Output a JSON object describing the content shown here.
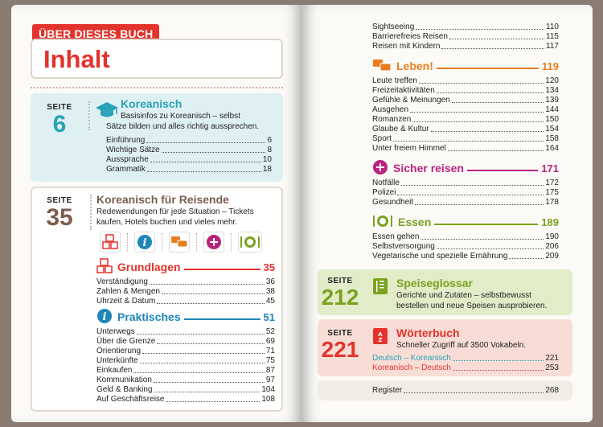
{
  "left": {
    "tag": "ÜBER DIESES BUCH",
    "title": "Inhalt",
    "block1": {
      "seite_label": "SEITE",
      "seite_num": "6",
      "heading": "Koreanisch",
      "desc1": "Basisinfos zu Koreanisch – selbst",
      "desc2": "Sätze bilden und alles richtig aussprechen.",
      "items": [
        {
          "label": "Einführung",
          "page": "6"
        },
        {
          "label": "Wichtige Sätze",
          "page": "8"
        },
        {
          "label": "Aussprache",
          "page": "10"
        },
        {
          "label": "Grammatik",
          "page": "18"
        }
      ]
    },
    "block2": {
      "seite_label": "SEITE",
      "seite_num": "35",
      "heading": "Koreanisch für Reisende",
      "desc1": "Redewendungen für jede Situation – Tickets",
      "desc2": "kaufen, Hotels buchen und vieles mehr.",
      "grundlagen": {
        "name": "Grundlagen",
        "page": "35",
        "items": [
          {
            "label": "Verständigung",
            "page": "36"
          },
          {
            "label": "Zahlen & Mengen",
            "page": "38"
          },
          {
            "label": "Uhrzeit & Datum",
            "page": "45"
          }
        ]
      },
      "praktisches": {
        "name": "Praktisches",
        "page": "51",
        "items": [
          {
            "label": "Unterwegs",
            "page": "52"
          },
          {
            "label": "Über die Grenze",
            "page": "69"
          },
          {
            "label": "Orientierung",
            "page": "71"
          },
          {
            "label": "Unterkünfte",
            "page": "75"
          },
          {
            "label": "Einkaufen",
            "page": "87"
          },
          {
            "label": "Kommunikation",
            "page": "97"
          },
          {
            "label": "Geld & Banking",
            "page": "104"
          },
          {
            "label": "Auf Geschäftsreise",
            "page": "108"
          }
        ]
      }
    }
  },
  "right": {
    "top_items": [
      {
        "label": "Sightseeing",
        "page": "110"
      },
      {
        "label": "Barrierefreies Reisen",
        "page": "115"
      },
      {
        "label": "Reisen mit Kindern",
        "page": "117"
      }
    ],
    "leben": {
      "name": "Leben!",
      "page": "119",
      "items": [
        {
          "label": "Leute treffen",
          "page": "120"
        },
        {
          "label": "Freizeitaktivitäten",
          "page": "134"
        },
        {
          "label": "Gefühle & Meinungen",
          "page": "139"
        },
        {
          "label": "Ausgehen",
          "page": "144"
        },
        {
          "label": "Romanzen",
          "page": "150"
        },
        {
          "label": "Glaube & Kultur",
          "page": "154"
        },
        {
          "label": "Sport",
          "page": "158"
        },
        {
          "label": "Unter freiem Himmel",
          "page": "164"
        }
      ]
    },
    "sicher": {
      "name": "Sicher reisen",
      "page": "171",
      "items": [
        {
          "label": "Notfälle",
          "page": "172"
        },
        {
          "label": "Polizei",
          "page": "175"
        },
        {
          "label": "Gesundheit",
          "page": "178"
        }
      ]
    },
    "essen": {
      "name": "Essen",
      "page": "189",
      "items": [
        {
          "label": "Essen gehen",
          "page": "190"
        },
        {
          "label": "Selbstversorgung",
          "page": "206"
        },
        {
          "label": "Vegetarische und spezielle Ernährung",
          "page": "209"
        }
      ]
    },
    "glossar": {
      "seite_label": "SEITE",
      "seite_num": "212",
      "heading": "Speiseglossar",
      "desc1": "Gerichte und Zutaten – selbstbewusst",
      "desc2": "bestellen und neue Speisen ausprobieren."
    },
    "woerterbuch": {
      "seite_label": "SEITE",
      "seite_num": "221",
      "heading": "Wörterbuch",
      "desc1": "Schneller Zugriff auf 3500 Vokabeln.",
      "items": [
        {
          "label": "Deutsch – Koreanisch",
          "page": "221"
        },
        {
          "label": "Koreanisch – Deutsch",
          "page": "253"
        }
      ]
    },
    "register": {
      "label": "Register",
      "page": "268"
    }
  },
  "colors": {
    "red": "#e4332c",
    "cyan": "#2aa1b8",
    "orange": "#e87d1e",
    "purple": "#b8237c",
    "green": "#7aa21e",
    "blue": "#1f86b8",
    "brown": "#7b5e4c"
  },
  "icons": [
    "graduation-cap-icon",
    "abc-blocks-icon",
    "info-icon",
    "speech-bubbles-icon",
    "plus-icon",
    "plate-cutlery-icon",
    "menu-card-icon",
    "dictionary-icon"
  ]
}
